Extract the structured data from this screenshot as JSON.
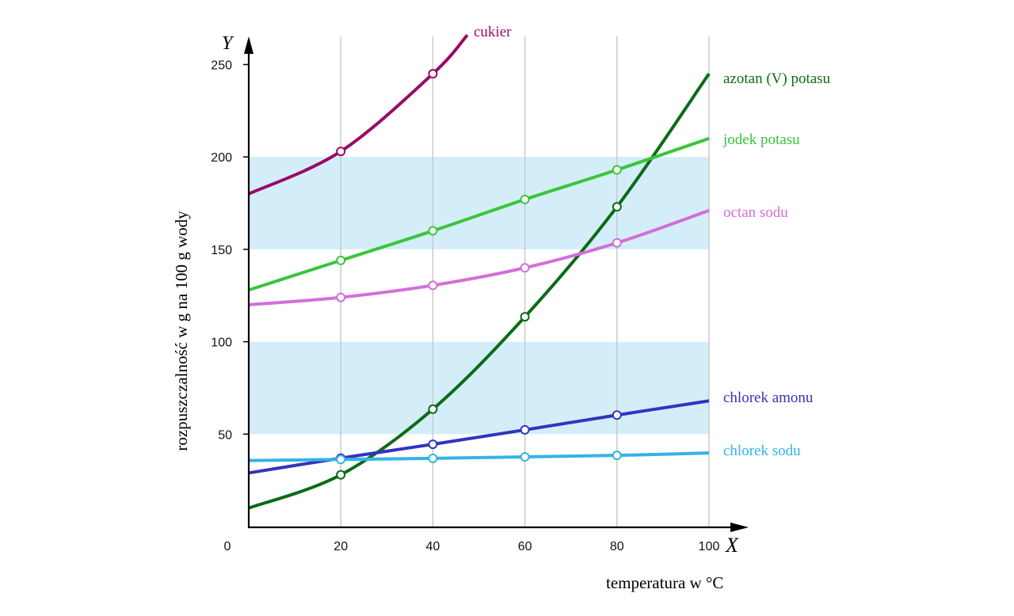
{
  "chart_data": {
    "type": "line",
    "title": "",
    "xlabel": "temperatura w °C",
    "ylabel": "rozpuszczalność w g na 100 g wody",
    "x_axis_letter": "X",
    "y_axis_letter": "Y",
    "xlim": [
      0,
      100
    ],
    "ylim": [
      0,
      260
    ],
    "x_ticks": [
      "0",
      "20",
      "40",
      "60",
      "80",
      "100"
    ],
    "y_ticks": [
      "50",
      "100",
      "150",
      "200",
      "250"
    ],
    "grid": "vertical lines at x ticks",
    "shaded_bands": [
      [
        50,
        100
      ],
      [
        150,
        200
      ]
    ],
    "band_color": "#d4eef9",
    "legend": "labels at line ends (right)",
    "series": [
      {
        "name": "cukier",
        "color": "#990a66",
        "x": [
          0,
          20,
          40,
          47.5
        ],
        "y": [
          180,
          203,
          245,
          266
        ],
        "markers": [
          20,
          40
        ]
      },
      {
        "name": "azotan (V) potasu",
        "color": "#0b6b15",
        "x": [
          0,
          20,
          40,
          60,
          80,
          100
        ],
        "y": [
          10,
          28,
          63.5,
          113.5,
          173,
          245
        ],
        "markers": [
          20,
          40,
          60,
          80
        ]
      },
      {
        "name": "jodek potasu",
        "color": "#3ac53a",
        "x": [
          0,
          20,
          40,
          60,
          80,
          100
        ],
        "y": [
          128,
          144,
          160,
          177,
          193,
          210
        ],
        "markers": [
          20,
          40,
          60,
          80
        ]
      },
      {
        "name": "octan sodu",
        "color": "#d26fd9",
        "x": [
          0,
          20,
          40,
          60,
          80,
          100
        ],
        "y": [
          120,
          124,
          130.5,
          140,
          153.5,
          171
        ],
        "markers": [
          20,
          40,
          60,
          80
        ]
      },
      {
        "name": "chlorek amonu",
        "color": "#3333bf",
        "x": [
          0,
          20,
          40,
          60,
          80,
          100
        ],
        "y": [
          29,
          37,
          44.5,
          52.3,
          60.3,
          68
        ],
        "markers": [
          20,
          40,
          60,
          80
        ]
      },
      {
        "name": "chlorek sodu",
        "color": "#33b3e8",
        "x": [
          0,
          20,
          40,
          60,
          80,
          100
        ],
        "y": [
          35.7,
          36.3,
          36.9,
          37.7,
          38.5,
          39.8
        ],
        "markers": [
          20,
          40,
          60,
          80
        ]
      }
    ]
  }
}
